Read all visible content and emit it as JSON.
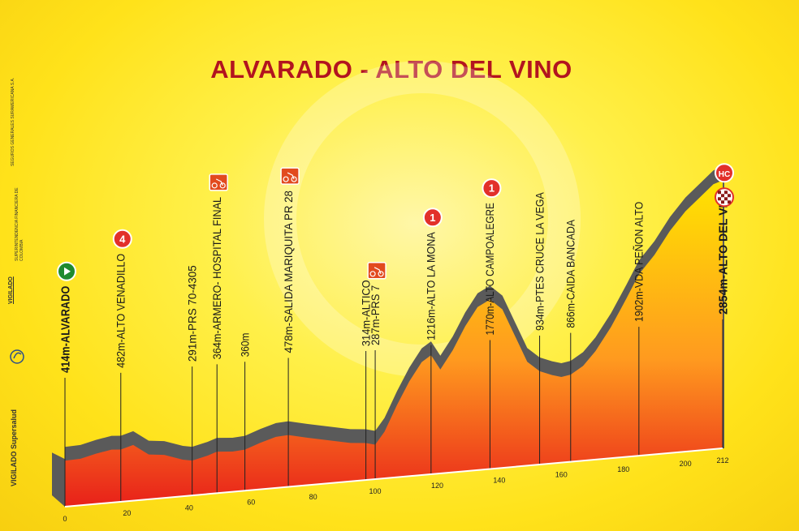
{
  "title": "ALVARADO - ALTO DEL VINO",
  "sidebar": {
    "vigilado_brand": "VIGILADO Supersalud",
    "vigilado": "VIGILADO",
    "superintendencia": "SUPERINTENDENCIA FINANCIERA DE COLOMBIA",
    "seguros": "SEGUROS GENERALES SURAMERICANA S.A."
  },
  "colors": {
    "title": "#b2141f",
    "profile_top": "#ffe400",
    "profile_mid": "#ff9a1f",
    "profile_bottom": "#e8201a",
    "profile_edge": "#5a5a5a",
    "category_badge": "#e2302a",
    "sprint_badge": "#e24a1e",
    "start_badge": "#1f8a2e"
  },
  "chart_data": {
    "type": "area",
    "xlabel": "",
    "ylabel": "",
    "x_ticks": [
      "0",
      "20",
      "40",
      "60",
      "80",
      "100",
      "120",
      "140",
      "160",
      "180",
      "200",
      "212"
    ],
    "xlim": [
      0,
      212
    ],
    "ylim": [
      300,
      2900
    ],
    "profile": [
      {
        "x": 0,
        "y": 414
      },
      {
        "x": 5,
        "y": 420
      },
      {
        "x": 10,
        "y": 460
      },
      {
        "x": 15,
        "y": 490
      },
      {
        "x": 18,
        "y": 482
      },
      {
        "x": 22,
        "y": 520
      },
      {
        "x": 27,
        "y": 400
      },
      {
        "x": 32,
        "y": 380
      },
      {
        "x": 38,
        "y": 310
      },
      {
        "x": 41,
        "y": 291
      },
      {
        "x": 46,
        "y": 330
      },
      {
        "x": 49,
        "y": 364
      },
      {
        "x": 54,
        "y": 350
      },
      {
        "x": 58,
        "y": 360
      },
      {
        "x": 63,
        "y": 420
      },
      {
        "x": 68,
        "y": 470
      },
      {
        "x": 72,
        "y": 478
      },
      {
        "x": 78,
        "y": 430
      },
      {
        "x": 85,
        "y": 380
      },
      {
        "x": 92,
        "y": 330
      },
      {
        "x": 97,
        "y": 314
      },
      {
        "x": 100,
        "y": 287
      },
      {
        "x": 103,
        "y": 420
      },
      {
        "x": 107,
        "y": 700
      },
      {
        "x": 111,
        "y": 950
      },
      {
        "x": 115,
        "y": 1150
      },
      {
        "x": 118,
        "y": 1216
      },
      {
        "x": 121,
        "y": 1050
      },
      {
        "x": 125,
        "y": 1250
      },
      {
        "x": 129,
        "y": 1500
      },
      {
        "x": 133,
        "y": 1700
      },
      {
        "x": 137,
        "y": 1770
      },
      {
        "x": 141,
        "y": 1650
      },
      {
        "x": 145,
        "y": 1350
      },
      {
        "x": 149,
        "y": 1050
      },
      {
        "x": 153,
        "y": 934
      },
      {
        "x": 157,
        "y": 880
      },
      {
        "x": 160,
        "y": 850
      },
      {
        "x": 163,
        "y": 866
      },
      {
        "x": 167,
        "y": 950
      },
      {
        "x": 171,
        "y": 1100
      },
      {
        "x": 176,
        "y": 1350
      },
      {
        "x": 181,
        "y": 1650
      },
      {
        "x": 185,
        "y": 1902
      },
      {
        "x": 190,
        "y": 2100
      },
      {
        "x": 195,
        "y": 2350
      },
      {
        "x": 200,
        "y": 2550
      },
      {
        "x": 205,
        "y": 2700
      },
      {
        "x": 209,
        "y": 2820
      },
      {
        "x": 212,
        "y": 2854
      }
    ],
    "points": [
      {
        "km": 0,
        "label": "414m-ALVARADO",
        "bold": true,
        "badge": "start"
      },
      {
        "km": 18,
        "label": "482m-ALTO VENADILLO",
        "badge": "4"
      },
      {
        "km": 41,
        "label": "291m-PRS 70-4305",
        "badge": ""
      },
      {
        "km": 49,
        "label": "364m-ARMERO- HOSPITAL FINAL",
        "badge": "sprint"
      },
      {
        "km": 58,
        "label": "360m",
        "badge": ""
      },
      {
        "km": 72,
        "label": "478m-SALIDA MARIQUITA PR 28",
        "badge": "sprint"
      },
      {
        "km": 97,
        "label": "314m-ALTICO",
        "badge": ""
      },
      {
        "km": 100,
        "label": "287m-PRS 7",
        "badge": "sprint"
      },
      {
        "km": 118,
        "label": "1216m-ALTO LA MONA",
        "badge": "1"
      },
      {
        "km": 137,
        "label": "1770m-ALTO CAMPOALEGRE",
        "badge": "1"
      },
      {
        "km": 153,
        "label": "934m-PTES CRUCE LA VEGA",
        "badge": ""
      },
      {
        "km": 163,
        "label": "866m-CAIDA BANCADA",
        "badge": ""
      },
      {
        "km": 185,
        "label": "1902m-VDA PEÑON ALTO",
        "badge": ""
      },
      {
        "km": 212,
        "label": "2854m-ALTO DEL VINO",
        "bold": true,
        "badge": "HC"
      }
    ]
  }
}
